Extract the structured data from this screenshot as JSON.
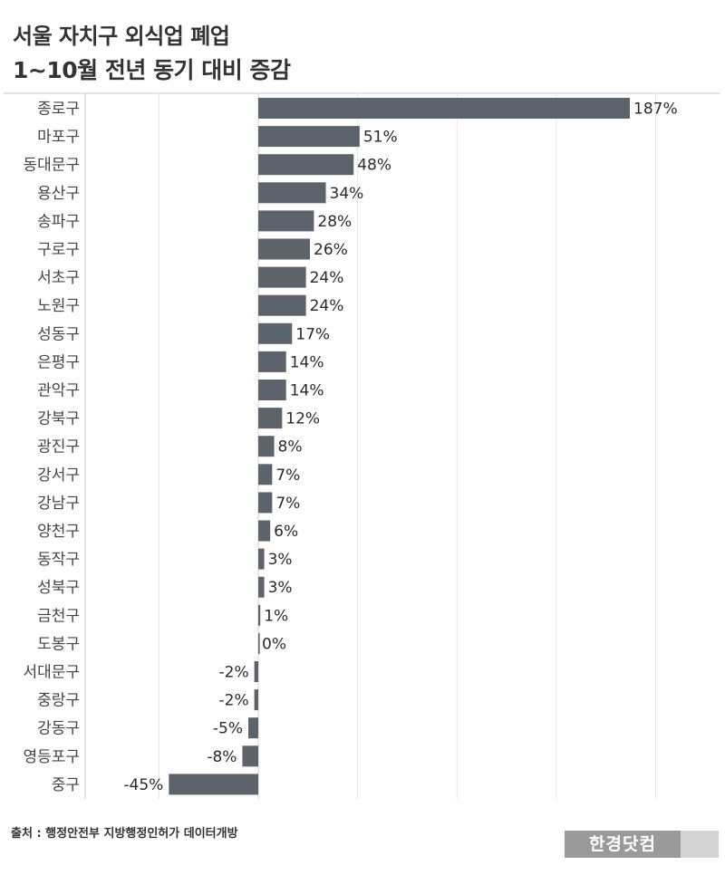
{
  "title": {
    "line1": "서울 자치구 외식업 폐업",
    "line2": "1~10월 전년 동기 대비 증감"
  },
  "chart_data": {
    "type": "bar",
    "orientation": "horizontal",
    "categories": [
      "종로구",
      "마포구",
      "동대문구",
      "용산구",
      "송파구",
      "구로구",
      "서초구",
      "노원구",
      "성동구",
      "은평구",
      "관악구",
      "강북구",
      "광진구",
      "강서구",
      "강남구",
      "양천구",
      "동작구",
      "성북구",
      "금천구",
      "도봉구",
      "서대문구",
      "중랑구",
      "강동구",
      "영등포구",
      "중구"
    ],
    "values": [
      187,
      51,
      48,
      34,
      28,
      26,
      24,
      24,
      17,
      14,
      14,
      12,
      8,
      7,
      7,
      6,
      3,
      3,
      1,
      0,
      -2,
      -2,
      -5,
      -8,
      -45
    ],
    "value_labels": [
      "187%",
      "51%",
      "48%",
      "34%",
      "28%",
      "26%",
      "24%",
      "24%",
      "17%",
      "14%",
      "14%",
      "12%",
      "8%",
      "7%",
      "7%",
      "6%",
      "3%",
      "3%",
      "1%",
      "0%",
      "-2%",
      "-2%",
      "-5%",
      "-8%",
      "-45%"
    ],
    "unit": "%",
    "xlim": [
      -50,
      200
    ],
    "gridlines_at": [
      -50,
      0,
      50,
      100,
      150,
      200
    ],
    "grid": true,
    "bar_color": "#5c636b",
    "grid_color": "#e6e6e6",
    "axis_color": "#c8c8c8"
  },
  "footer": {
    "source": "출처 : 행정안전부 지방행정인허가 데이터개방",
    "brand": "한경닷컴"
  }
}
